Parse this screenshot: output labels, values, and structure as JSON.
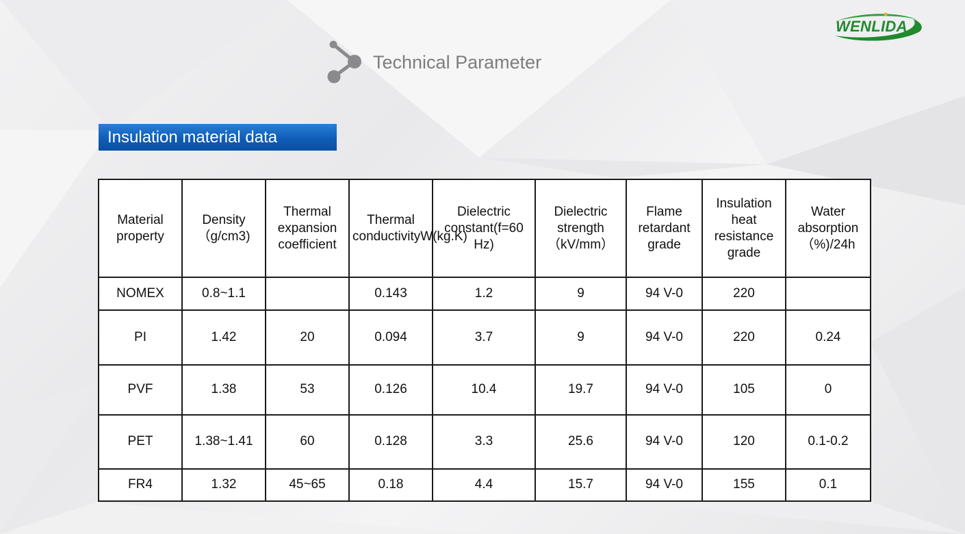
{
  "brand": {
    "name": "WENLIDA"
  },
  "colors": {
    "brand_green": "#1f8a2e",
    "section_blue": "#0f5db8",
    "title_gray": "#7d7d80"
  },
  "header": {
    "title": "Technical Parameter",
    "icon": "molecule-nodes-icon"
  },
  "section": {
    "label": "Insulation material data"
  },
  "table": {
    "columns": [
      "Material property",
      "Density（g/cm3)",
      "Thermal expansion coefficient",
      "Thermal conductivityW(kg.K)",
      "Dielectric constant(f=60 Hz)",
      "Dielectric strength（kV/mm）",
      "Flame retardant grade",
      "Insulation heat resistance grade",
      "Water absorption（%)/24h"
    ],
    "rows": [
      [
        "NOMEX",
        "0.8~1.1",
        "",
        "0.143",
        "1.2",
        "9",
        "94 V-0",
        "220",
        ""
      ],
      [
        "PI",
        "1.42",
        "20",
        "0.094",
        "3.7",
        "9",
        "94 V-0",
        "220",
        "0.24"
      ],
      [
        "PVF",
        "1.38",
        "53",
        "0.126",
        "10.4",
        "19.7",
        "94 V-0",
        "105",
        "0"
      ],
      [
        "PET",
        "1.38~1.41",
        "60",
        "0.128",
        "3.3",
        "25.6",
        "94 V-0",
        "120",
        "0.1-0.2"
      ],
      [
        "FR4",
        "1.32",
        "45~65",
        "0.18",
        "4.4",
        "15.7",
        "94 V-0",
        "155",
        "0.1"
      ]
    ]
  }
}
